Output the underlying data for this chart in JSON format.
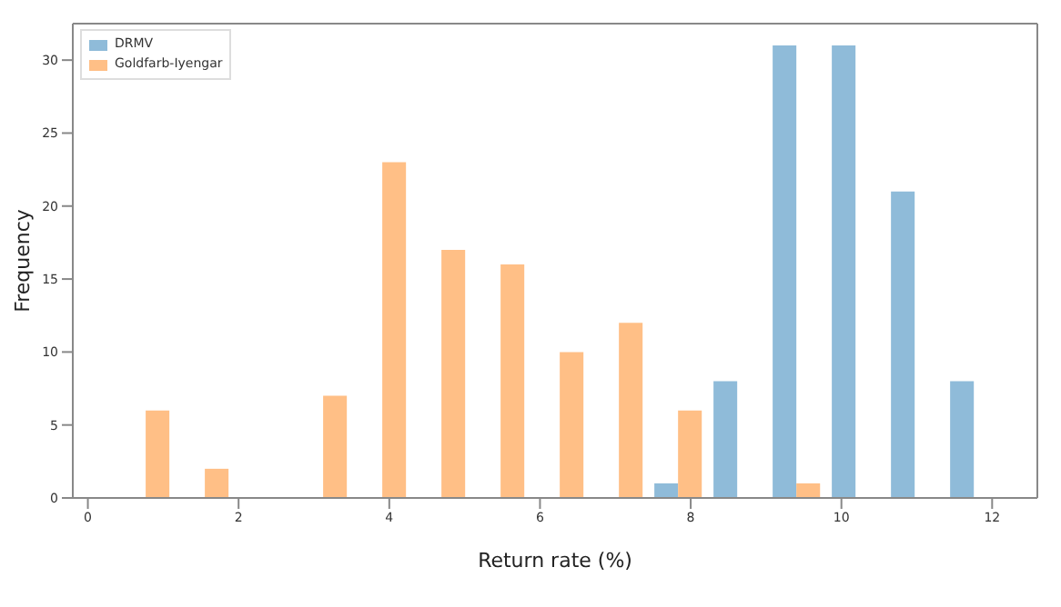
{
  "chart_data": {
    "type": "histogram",
    "xlabel": "Return rate (%)",
    "ylabel": "Frequency",
    "bins": [
      0.38,
      1.165,
      1.95,
      2.735,
      3.52,
      4.305,
      5.09,
      5.875,
      6.66,
      7.445,
      8.23,
      9.015,
      9.8,
      10.585,
      11.37,
      12.155
    ],
    "series": [
      {
        "name": "DRMV",
        "color": "#8fbbd9",
        "values": [
          0,
          0,
          0,
          0,
          0,
          0,
          0,
          0,
          0,
          1,
          8,
          31,
          31,
          21,
          8
        ]
      },
      {
        "name": "Goldfarb-Iyengar",
        "color": "#ffbf86",
        "values": [
          6,
          2,
          0,
          7,
          23,
          17,
          16,
          10,
          12,
          6,
          0,
          1,
          0,
          0,
          0
        ]
      }
    ],
    "xlim": [
      -0.2,
      12.6
    ],
    "xticks": [
      0,
      2,
      4,
      6,
      8,
      10,
      12
    ],
    "ylim": [
      0,
      32.5
    ],
    "yticks": [
      0,
      5,
      10,
      15,
      20,
      25,
      30
    ],
    "grid": false,
    "legend": "top left"
  }
}
